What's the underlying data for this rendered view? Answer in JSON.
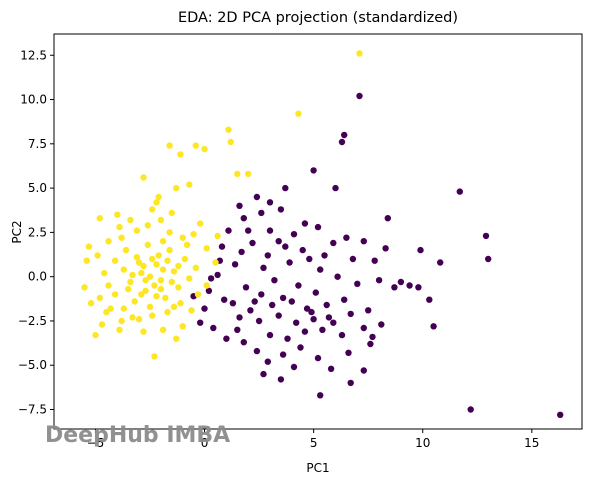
{
  "chart_data": {
    "type": "scatter",
    "title": "EDA: 2D PCA projection (standardized)",
    "xlabel": "PC1",
    "ylabel": "PC2",
    "xlim": [
      -6.9,
      17.3
    ],
    "ylim": [
      -8.6,
      13.7
    ],
    "x_ticks": [
      "−5",
      "0",
      "5",
      "10",
      "15"
    ],
    "x_tick_values": [
      -5,
      0,
      5,
      10,
      15
    ],
    "y_ticks": [
      "−7.5",
      "−5.0",
      "−2.5",
      "0.0",
      "2.5",
      "5.0",
      "7.5",
      "10.0",
      "12.5"
    ],
    "y_tick_values": [
      -7.5,
      -5.0,
      -2.5,
      0.0,
      2.5,
      5.0,
      7.5,
      10.0,
      12.5
    ],
    "grid": false,
    "legend": "none",
    "colors": {
      "class_0": "#440154",
      "class_1": "#fde725"
    },
    "series": [
      {
        "color": "#440154",
        "points": [
          [
            7.1,
            10.2
          ],
          [
            6.4,
            8.0
          ],
          [
            6.3,
            7.6
          ],
          [
            5.0,
            6.0
          ],
          [
            3.7,
            5.0
          ],
          [
            6.0,
            5.0
          ],
          [
            3.0,
            4.2
          ],
          [
            2.4,
            4.5
          ],
          [
            1.6,
            4.0
          ],
          [
            11.7,
            4.8
          ],
          [
            3.5,
            3.8
          ],
          [
            1.8,
            3.3
          ],
          [
            3.0,
            2.6
          ],
          [
            5.2,
            2.8
          ],
          [
            8.4,
            3.3
          ],
          [
            12.9,
            2.3
          ],
          [
            13.0,
            1.0
          ],
          [
            9.9,
            1.5
          ],
          [
            10.8,
            0.8
          ],
          [
            4.6,
            3.0
          ],
          [
            3.4,
            2.0
          ],
          [
            2.2,
            1.9
          ],
          [
            1.1,
            2.6
          ],
          [
            0.8,
            1.7
          ],
          [
            1.4,
            0.7
          ],
          [
            0.6,
            0.1
          ],
          [
            0.3,
            -0.1
          ],
          [
            0.2,
            -0.8
          ],
          [
            0.9,
            -1.3
          ],
          [
            0.0,
            -1.8
          ],
          [
            -0.5,
            -1.1
          ],
          [
            1.3,
            -1.5
          ],
          [
            1.9,
            -0.6
          ],
          [
            2.1,
            -1.9
          ],
          [
            2.6,
            -1.0
          ],
          [
            2.7,
            0.5
          ],
          [
            3.2,
            -0.2
          ],
          [
            3.6,
            -1.2
          ],
          [
            3.9,
            0.8
          ],
          [
            4.3,
            -0.5
          ],
          [
            4.5,
            1.5
          ],
          [
            4.7,
            -1.8
          ],
          [
            5.1,
            -0.9
          ],
          [
            5.3,
            0.4
          ],
          [
            5.6,
            -1.6
          ],
          [
            5.9,
            1.9
          ],
          [
            6.1,
            0.0
          ],
          [
            6.4,
            -1.3
          ],
          [
            6.8,
            1.0
          ],
          [
            7.0,
            -0.4
          ],
          [
            7.3,
            2.0
          ],
          [
            7.5,
            -1.9
          ],
          [
            7.8,
            0.9
          ],
          [
            8.0,
            -0.2
          ],
          [
            8.3,
            1.6
          ],
          [
            8.7,
            -0.6
          ],
          [
            9.0,
            -0.3
          ],
          [
            9.4,
            -0.5
          ],
          [
            9.8,
            -0.6
          ],
          [
            10.3,
            -1.3
          ],
          [
            10.5,
            -2.8
          ],
          [
            2.5,
            -2.5
          ],
          [
            3.0,
            -3.3
          ],
          [
            3.4,
            -2.2
          ],
          [
            3.8,
            -3.5
          ],
          [
            4.2,
            -2.6
          ],
          [
            4.6,
            -3.1
          ],
          [
            5.0,
            -2.4
          ],
          [
            5.4,
            -3.0
          ],
          [
            5.7,
            -2.3
          ],
          [
            6.3,
            -3.3
          ],
          [
            6.7,
            -2.1
          ],
          [
            7.3,
            -2.9
          ],
          [
            7.7,
            -3.4
          ],
          [
            8.1,
            -2.7
          ],
          [
            1.5,
            -3.0
          ],
          [
            1.8,
            -3.7
          ],
          [
            2.4,
            -4.2
          ],
          [
            2.9,
            -4.8
          ],
          [
            3.6,
            -4.4
          ],
          [
            4.4,
            -4.0
          ],
          [
            5.2,
            -4.6
          ],
          [
            5.8,
            -5.2
          ],
          [
            6.6,
            -4.3
          ],
          [
            7.3,
            -5.3
          ],
          [
            7.6,
            -3.8
          ],
          [
            3.5,
            -5.8
          ],
          [
            2.7,
            -5.5
          ],
          [
            5.3,
            -6.7
          ],
          [
            6.7,
            -6.0
          ],
          [
            4.1,
            -5.1
          ],
          [
            12.2,
            -7.5
          ],
          [
            16.3,
            -7.8
          ],
          [
            1.0,
            -3.5
          ],
          [
            0.4,
            -2.9
          ],
          [
            -0.2,
            -2.6
          ],
          [
            2.0,
            2.6
          ],
          [
            2.9,
            1.2
          ],
          [
            3.7,
            1.7
          ],
          [
            4.1,
            2.4
          ],
          [
            5.5,
            1.2
          ],
          [
            6.5,
            2.2
          ],
          [
            1.6,
            -2.3
          ],
          [
            2.3,
            -1.4
          ],
          [
            3.1,
            -1.6
          ],
          [
            4.0,
            -1.4
          ],
          [
            4.9,
            -2.0
          ],
          [
            5.9,
            -2.6
          ],
          [
            2.6,
            3.6
          ],
          [
            4.8,
            1.0
          ],
          [
            0.7,
            0.9
          ],
          [
            1.7,
            1.4
          ]
        ]
      },
      {
        "color": "#fde725",
        "points": [
          [
            7.1,
            12.6
          ],
          [
            4.3,
            9.2
          ],
          [
            1.1,
            8.3
          ],
          [
            1.2,
            7.6
          ],
          [
            -0.4,
            7.4
          ],
          [
            0.0,
            7.2
          ],
          [
            -1.1,
            6.9
          ],
          [
            -1.6,
            7.4
          ],
          [
            2.0,
            5.8
          ],
          [
            1.5,
            5.8
          ],
          [
            -0.7,
            5.2
          ],
          [
            -1.3,
            5.0
          ],
          [
            -2.1,
            4.5
          ],
          [
            -2.4,
            3.8
          ],
          [
            -2.8,
            5.6
          ],
          [
            -4.8,
            3.3
          ],
          [
            -3.8,
            2.2
          ],
          [
            -3.9,
            2.8
          ],
          [
            -5.3,
            1.7
          ],
          [
            -5.4,
            0.9
          ],
          [
            -5.5,
            -0.6
          ],
          [
            -5.0,
            -3.3
          ],
          [
            -4.7,
            -2.7
          ],
          [
            -4.3,
            -1.8
          ],
          [
            -4.6,
            0.2
          ],
          [
            -4.9,
            1.2
          ],
          [
            -4.4,
            2.0
          ],
          [
            -3.4,
            3.2
          ],
          [
            -3.1,
            2.6
          ],
          [
            -2.6,
            2.9
          ],
          [
            -2.0,
            3.2
          ],
          [
            -1.6,
            2.5
          ],
          [
            -1.0,
            2.2
          ],
          [
            -0.5,
            2.4
          ],
          [
            0.1,
            1.6
          ],
          [
            0.5,
            0.8
          ],
          [
            0.1,
            -0.5
          ],
          [
            -0.3,
            -1.0
          ],
          [
            -0.6,
            -1.9
          ],
          [
            -1.0,
            -2.8
          ],
          [
            -1.3,
            -3.5
          ],
          [
            -1.9,
            -3.0
          ],
          [
            -2.3,
            -4.5
          ],
          [
            -2.8,
            -3.1
          ],
          [
            -3.3,
            -2.3
          ],
          [
            -3.9,
            -3.0
          ],
          [
            -4.1,
            -1.0
          ],
          [
            -3.7,
            0.4
          ],
          [
            -3.4,
            -0.3
          ],
          [
            -3.1,
            1.1
          ],
          [
            -2.9,
            0.2
          ],
          [
            -2.7,
            -0.8
          ],
          [
            -2.5,
            -1.7
          ],
          [
            -2.2,
            0.7
          ],
          [
            -2.0,
            -0.2
          ],
          [
            -1.8,
            -1.2
          ],
          [
            -1.6,
            1.5
          ],
          [
            -1.4,
            0.3
          ],
          [
            -1.2,
            -0.6
          ],
          [
            -0.9,
            1.0
          ],
          [
            -0.7,
            -0.1
          ],
          [
            -0.4,
            0.5
          ],
          [
            -3.6,
            1.5
          ],
          [
            -3.2,
            -1.4
          ],
          [
            -2.6,
            1.8
          ],
          [
            -2.4,
            -2.2
          ],
          [
            -1.9,
            2.0
          ],
          [
            -1.7,
            -2.0
          ],
          [
            -1.1,
            -1.5
          ],
          [
            -0.8,
            1.8
          ],
          [
            -4.4,
            -0.5
          ],
          [
            -4.1,
            0.9
          ],
          [
            -3.0,
            -2.4
          ],
          [
            -2.3,
            -0.5
          ],
          [
            -2.1,
            1.2
          ],
          [
            -1.5,
            -0.3
          ],
          [
            -3.5,
            -0.7
          ],
          [
            -2.8,
            0.6
          ],
          [
            -2.5,
            0.0
          ],
          [
            -2.2,
            -1.1
          ],
          [
            -1.9,
            0.4
          ],
          [
            -3.0,
            0.8
          ],
          [
            -2.7,
            -0.2
          ],
          [
            -2.4,
            1.0
          ],
          [
            -2.0,
            -0.7
          ],
          [
            -3.3,
            0.1
          ],
          [
            -2.9,
            -1.0
          ],
          [
            -1.4,
            -1.7
          ],
          [
            -1.7,
            0.9
          ],
          [
            -3.7,
            -1.8
          ],
          [
            -4.5,
            -2.0
          ],
          [
            -4.0,
            3.5
          ],
          [
            -2.2,
            4.2
          ],
          [
            -1.5,
            3.6
          ],
          [
            -0.2,
            3.0
          ],
          [
            0.6,
            2.3
          ],
          [
            -5.2,
            -1.5
          ],
          [
            -4.8,
            -1.2
          ],
          [
            -3.8,
            -2.5
          ],
          [
            -1.2,
            0.6
          ]
        ]
      }
    ]
  },
  "watermark": "DeepHub IMBA"
}
